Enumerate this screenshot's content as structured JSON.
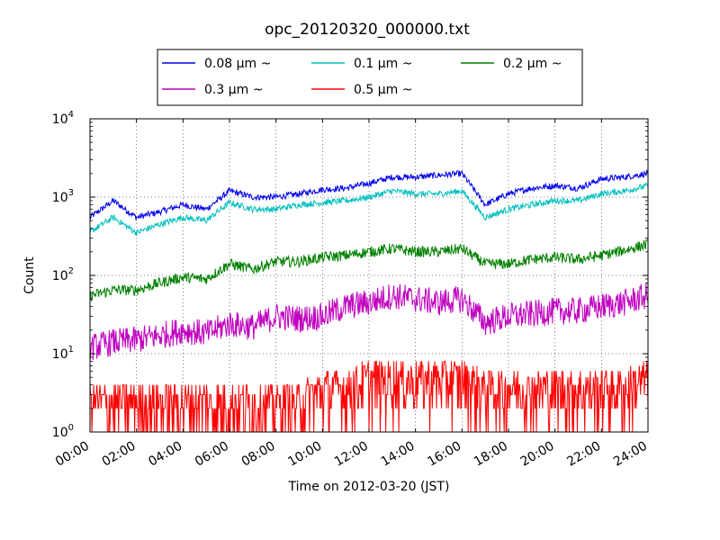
{
  "chart_data": {
    "type": "line",
    "title": "opc_20120320_000000.txt",
    "xlabel": "Time on 2012-03-20 (JST)",
    "ylabel": "Count",
    "y_scale": "log",
    "ylim": [
      1,
      10000
    ],
    "xlim": [
      "00:00",
      "24:00"
    ],
    "x_tick_labels": [
      "00:00",
      "02:00",
      "04:00",
      "06:00",
      "08:00",
      "10:00",
      "12:00",
      "14:00",
      "16:00",
      "18:00",
      "20:00",
      "22:00",
      "24:00"
    ],
    "y_tick_labels": [
      {
        "base": "10",
        "exp": "0"
      },
      {
        "base": "10",
        "exp": "1"
      },
      {
        "base": "10",
        "exp": "2"
      },
      {
        "base": "10",
        "exp": "3"
      },
      {
        "base": "10",
        "exp": "4"
      }
    ],
    "grid": true,
    "legend_placement": "top, outside plot",
    "x": [
      "00:00",
      "01:00",
      "02:00",
      "03:00",
      "04:00",
      "05:00",
      "06:00",
      "07:00",
      "08:00",
      "09:00",
      "10:00",
      "11:00",
      "12:00",
      "13:00",
      "14:00",
      "15:00",
      "16:00",
      "17:00",
      "18:00",
      "19:00",
      "20:00",
      "21:00",
      "22:00",
      "23:00",
      "24:00"
    ],
    "series": [
      {
        "name": "0.08 μm ~",
        "color": "#0000ee",
        "values": [
          550,
          900,
          550,
          650,
          800,
          700,
          1200,
          1000,
          1000,
          1100,
          1250,
          1300,
          1500,
          1800,
          1800,
          1900,
          2000,
          800,
          1100,
          1300,
          1400,
          1300,
          1700,
          1800,
          2000
        ]
      },
      {
        "name": "0.1 μm ~",
        "color": "#00bfbf",
        "values": [
          360,
          550,
          350,
          450,
          550,
          500,
          850,
          700,
          700,
          800,
          850,
          900,
          1000,
          1200,
          1100,
          1100,
          1200,
          550,
          700,
          800,
          900,
          900,
          1100,
          1200,
          1400
        ]
      },
      {
        "name": "0.2 μm ~",
        "color": "#008000",
        "values": [
          55,
          65,
          65,
          80,
          95,
          90,
          140,
          120,
          150,
          150,
          170,
          180,
          200,
          220,
          200,
          200,
          220,
          140,
          140,
          160,
          170,
          160,
          180,
          210,
          250
        ]
      },
      {
        "name": "0.3 μm ~",
        "color": "#bf00bf",
        "values": [
          12,
          14,
          15,
          17,
          20,
          18,
          24,
          22,
          30,
          28,
          30,
          40,
          45,
          55,
          50,
          45,
          50,
          25,
          30,
          32,
          35,
          35,
          40,
          45,
          55
        ]
      },
      {
        "name": "0.5 μm ~",
        "color": "#ff0000",
        "values": [
          2,
          2,
          2,
          2,
          2,
          2,
          2,
          2,
          2,
          2,
          3,
          3,
          4,
          4,
          4,
          4,
          4,
          3,
          3,
          3,
          3,
          3,
          3,
          3,
          4
        ]
      }
    ]
  }
}
